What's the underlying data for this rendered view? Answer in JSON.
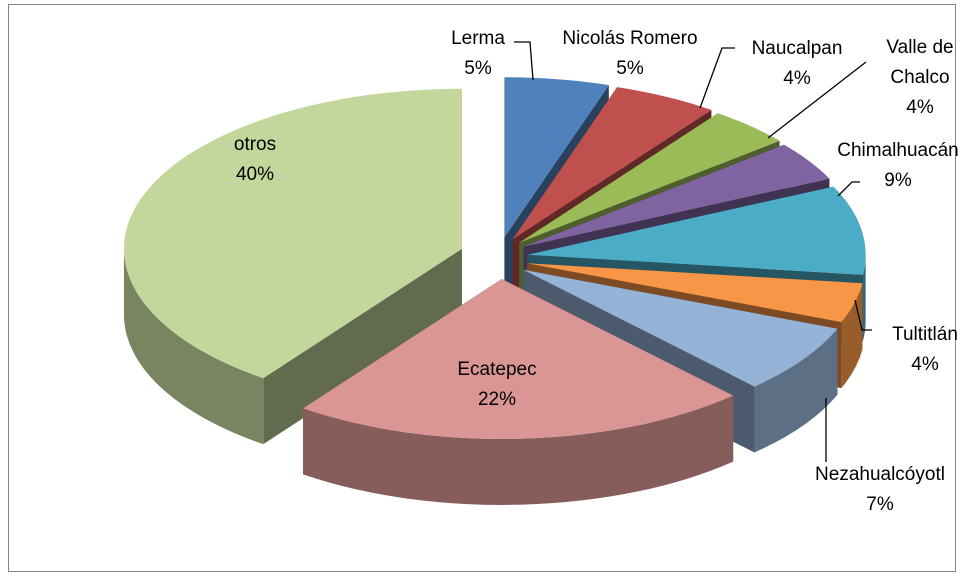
{
  "chart_data": {
    "type": "pie",
    "categories": [
      "Lerma",
      "Nicolás Romero",
      "Naucalpan",
      "Valle de Chalco",
      "Chimalhuacán",
      "Tultitlán",
      "Nezahualcóyotl",
      "Ecatepec",
      "otros"
    ],
    "values": [
      5,
      5,
      4,
      4,
      9,
      4,
      7,
      22,
      40
    ],
    "value_labels": [
      "5%",
      "5%",
      "4%",
      "4%",
      "9%",
      "4%",
      "7%",
      "22%",
      "40%"
    ],
    "colors": [
      "#4f81bd",
      "#c0504d",
      "#9bbb59",
      "#8064a2",
      "#4bacc6",
      "#f79646",
      "#95b3d7",
      "#d99694",
      "#c3d69b"
    ],
    "style": "3d-exploded"
  }
}
